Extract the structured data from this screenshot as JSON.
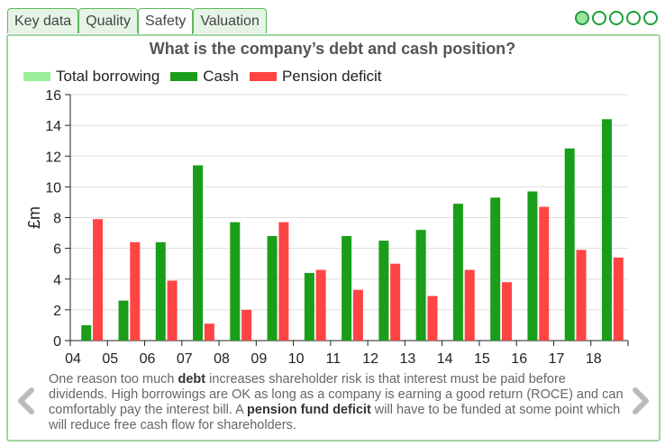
{
  "tabs": [
    {
      "label": "Key data"
    },
    {
      "label": "Quality"
    },
    {
      "label": "Safety"
    },
    {
      "label": "Valuation"
    }
  ],
  "active_tab": 2,
  "pager": {
    "count": 5,
    "active": 0
  },
  "colors": {
    "total_borrowing": "#99ee99",
    "cash": "#1a9e1a",
    "pension_deficit": "#ff4444",
    "tab_border": "#5cb85c"
  },
  "caption": {
    "p1": "One reason too much ",
    "b1": "debt",
    "p2": " increases shareholder risk is that interest must be paid before dividends. High borrowings are OK as long as a company is earning a good return (ROCE) and can comfortably pay the interest bill. A ",
    "b2": "pension fund deficit",
    "p3": " will have to be funded at some point which will reduce free cash flow for shareholders."
  },
  "chart_data": {
    "type": "bar",
    "title": "What is the company’s debt and cash position?",
    "ylabel": "£m",
    "xlabel": "",
    "ylim": [
      0,
      16
    ],
    "yticks": [
      0,
      2,
      4,
      6,
      8,
      10,
      12,
      14,
      16
    ],
    "xticks": [
      "04",
      "05",
      "06",
      "07",
      "08",
      "09",
      "10",
      "11",
      "12",
      "13",
      "14",
      "15",
      "16",
      "17",
      "18"
    ],
    "legend_position": "top-left",
    "grid": true,
    "series": [
      {
        "name": "Total borrowing",
        "values": [
          0,
          0,
          0,
          0,
          0,
          0,
          0,
          0,
          0,
          0,
          0,
          0,
          0,
          0,
          0
        ]
      },
      {
        "name": "Cash",
        "values": [
          1.0,
          2.6,
          6.4,
          11.4,
          7.7,
          6.8,
          4.4,
          6.8,
          6.5,
          7.2,
          8.9,
          9.3,
          9.7,
          12.5,
          14.4
        ]
      },
      {
        "name": "Pension deficit",
        "values": [
          7.9,
          6.4,
          3.9,
          1.1,
          2.0,
          7.7,
          4.6,
          3.3,
          5.0,
          2.9,
          4.6,
          3.8,
          8.7,
          5.9,
          5.4
        ]
      }
    ]
  }
}
